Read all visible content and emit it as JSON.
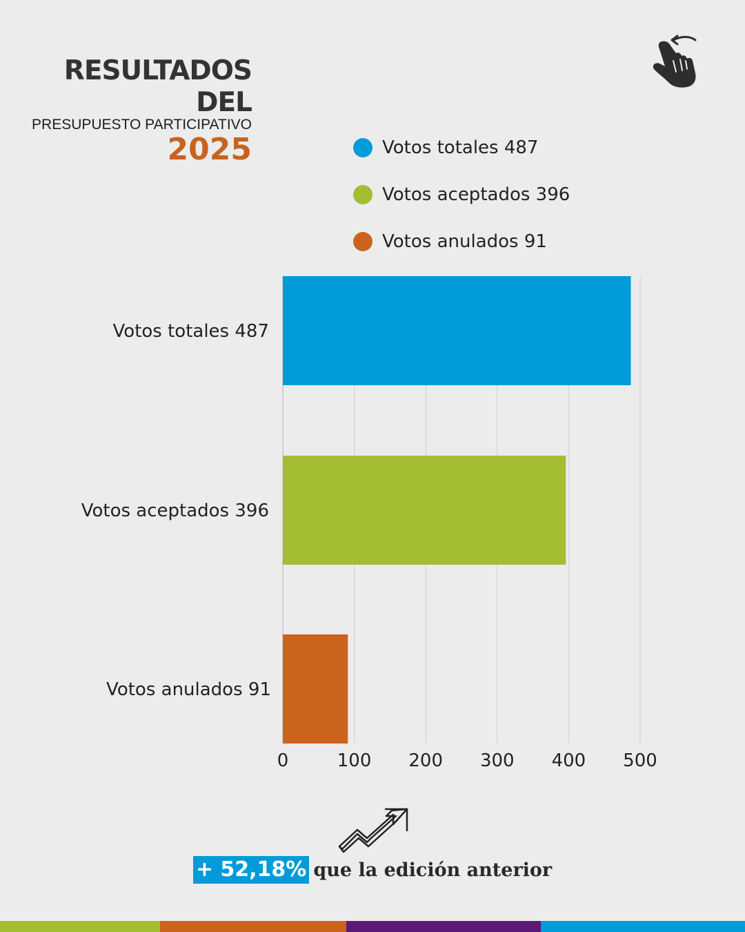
{
  "header": {
    "title_line1": "RESULTADOS DEL",
    "title_line2": "PRESUPUESTO PARTICIPATIVO",
    "year": "2025"
  },
  "icons": {
    "swipe": "swipe-hand-icon",
    "trend": "trending-up-arrow-icon"
  },
  "colors": {
    "blue": "#009bd8",
    "green": "#a3be32",
    "orange": "#cc631c",
    "purple": "#5b1a78",
    "title_dark": "#333333",
    "title_orange": "#c8631f"
  },
  "legend": [
    {
      "label": "Votos totales 487",
      "color": "#009bd8"
    },
    {
      "label": "Votos aceptados 396",
      "color": "#a3be32"
    },
    {
      "label": "Votos anulados 91",
      "color": "#cc631c"
    }
  ],
  "chart_data": {
    "type": "bar",
    "orientation": "horizontal",
    "categories": [
      "Votos totales 487",
      "Votos aceptados 396",
      "Votos anulados 91"
    ],
    "values": [
      487,
      396,
      91
    ],
    "colors": [
      "#009bd8",
      "#a3be32",
      "#cc631c"
    ],
    "xlim": [
      0,
      500
    ],
    "xticks": [
      0,
      100,
      200,
      300,
      400,
      500
    ],
    "xtick_labels": [
      "0",
      "100",
      "200",
      "300",
      "400",
      "500"
    ],
    "grid": true,
    "legend_position": "top-right",
    "title": "",
    "xlabel": "",
    "ylabel": ""
  },
  "footer": {
    "stat_highlight": "+ 52,18%",
    "stat_text": "que la edición anterior"
  },
  "bottom_stripe": [
    "#a3be32",
    "#cc631c",
    "#5b1a78",
    "#009bd8"
  ]
}
